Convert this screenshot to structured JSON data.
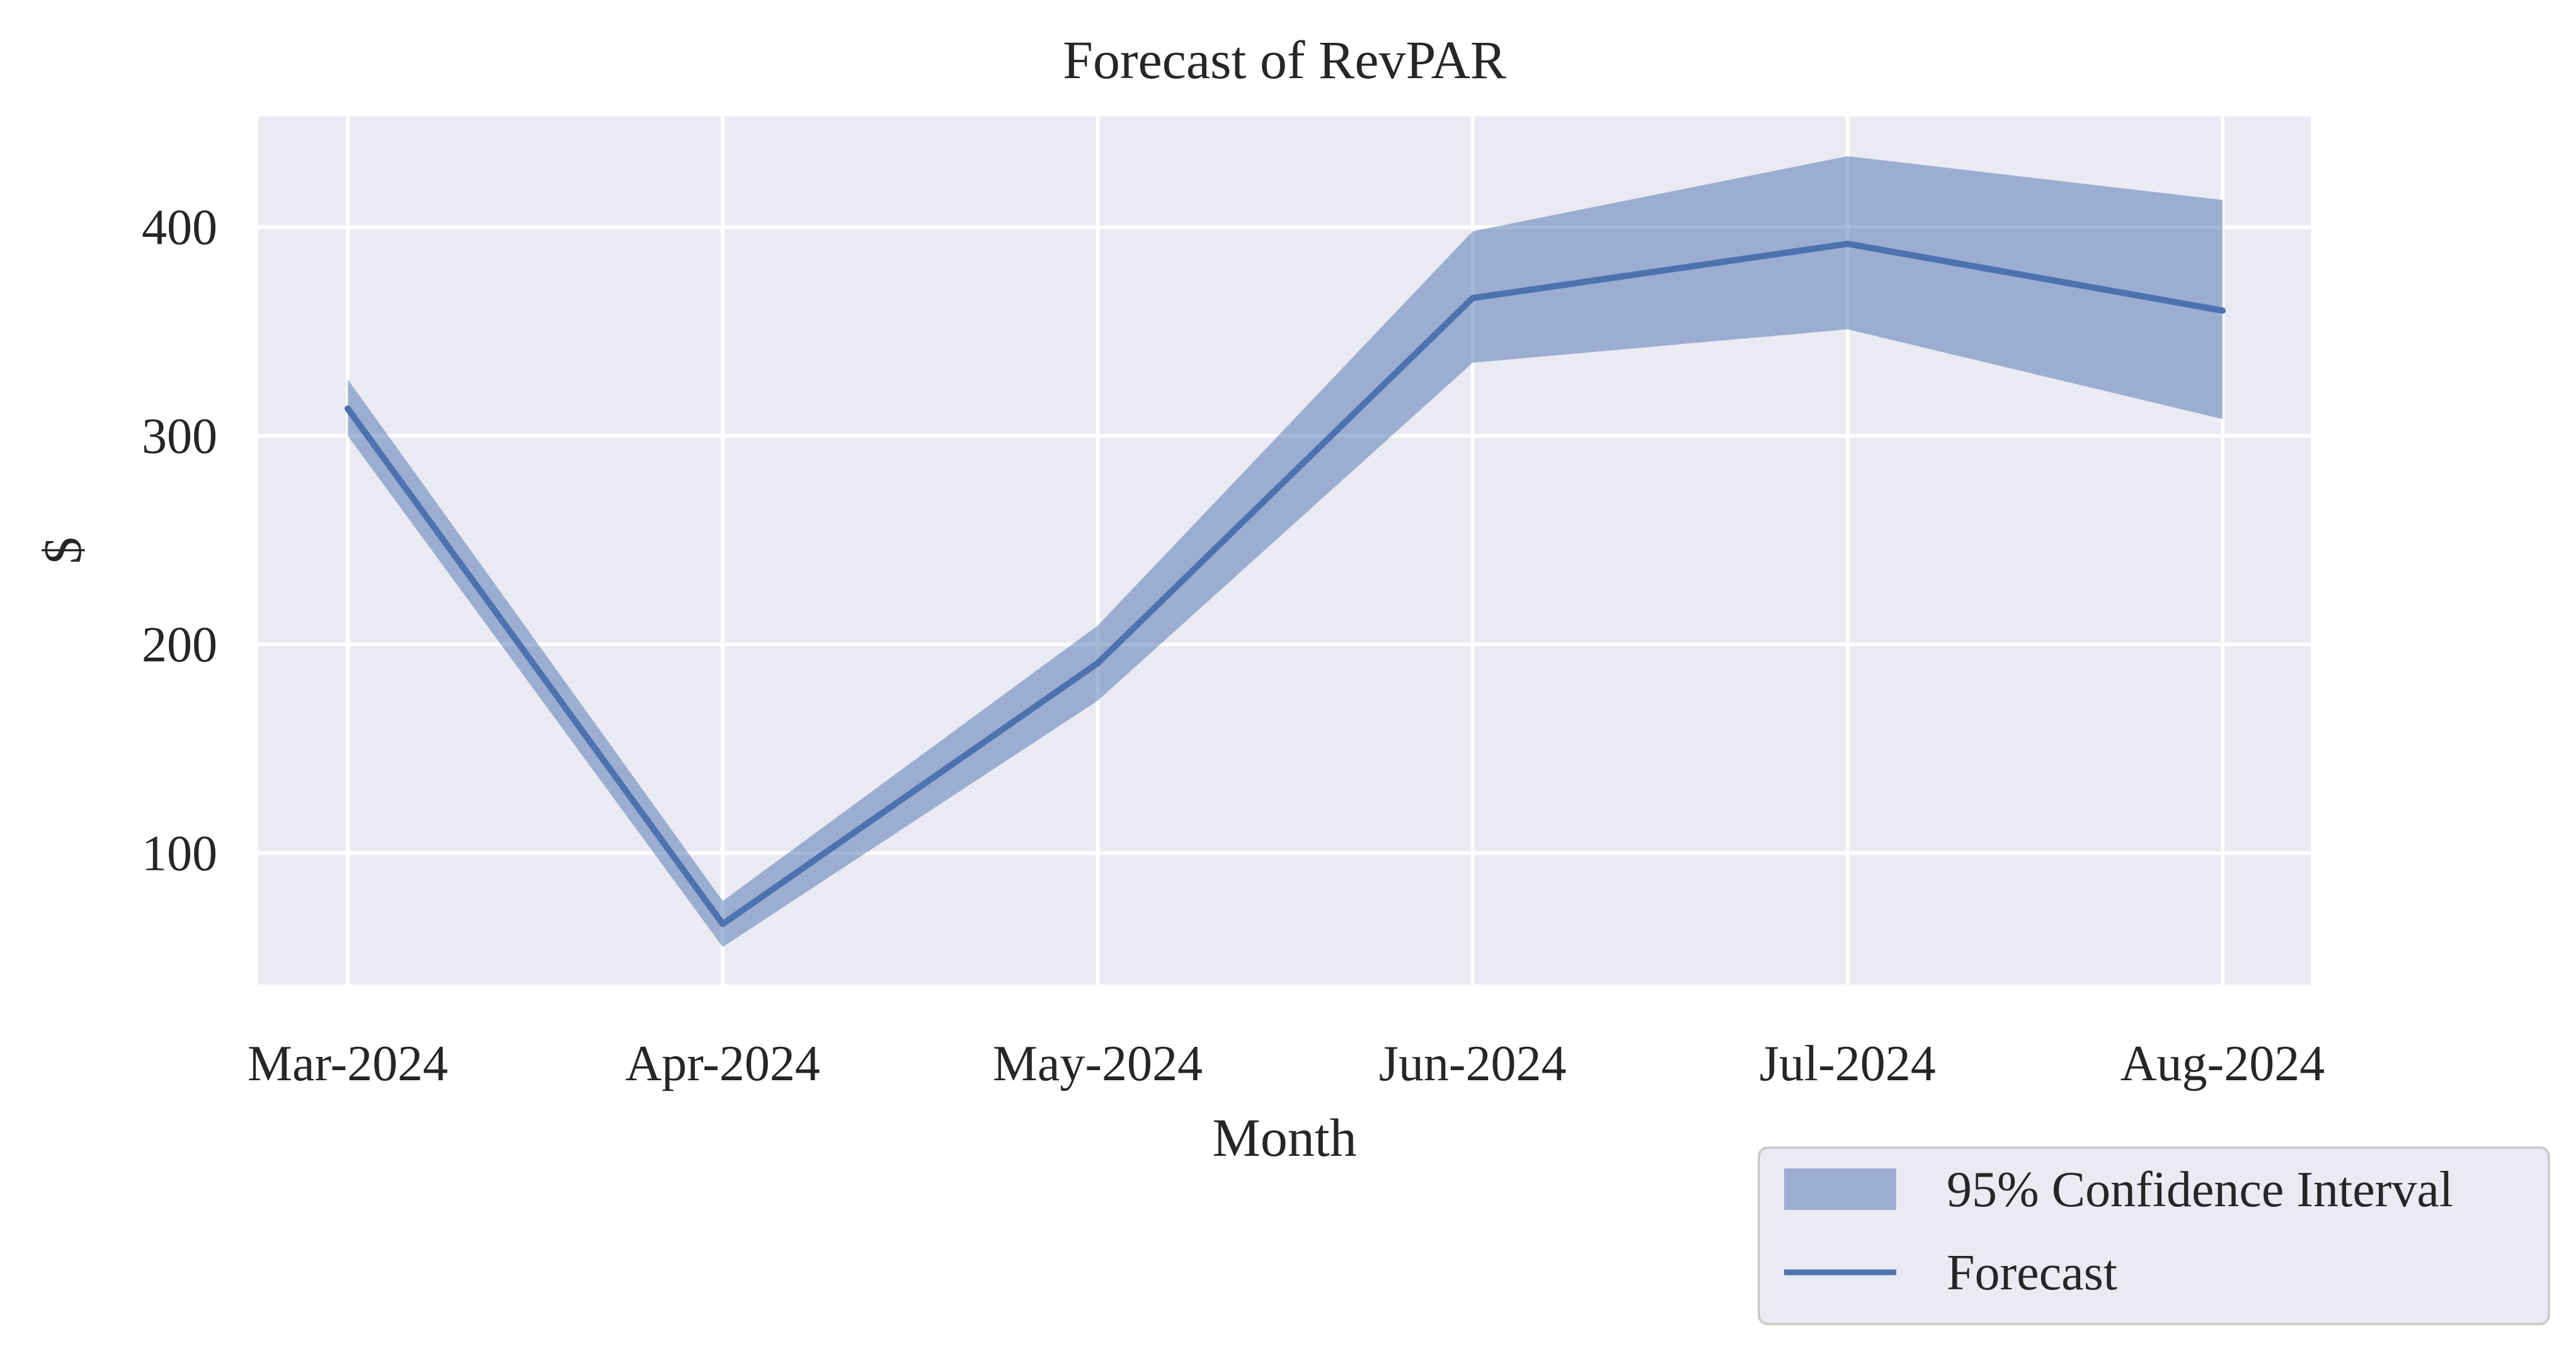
{
  "chart_data": {
    "type": "line",
    "title": "Forecast of RevPAR",
    "xlabel": "Month",
    "ylabel": "$",
    "categories": [
      "Mar-2024",
      "Apr-2024",
      "May-2024",
      "Jun-2024",
      "Jul-2024",
      "Aug-2024"
    ],
    "series": [
      {
        "name": "Forecast",
        "values": [
          313,
          66,
          191,
          366,
          392,
          360
        ]
      }
    ],
    "confidence_interval": {
      "name": "95% Confidence Interval",
      "lower": [
        300,
        55,
        173,
        335,
        351,
        308
      ],
      "upper": [
        327,
        77,
        209,
        398,
        434,
        413
      ]
    },
    "ylim": [
      37,
      453
    ],
    "yticks": [
      100,
      200,
      300,
      400
    ],
    "grid": true,
    "legend_position": "bottom-right, outside axes",
    "colors": {
      "line": "#4c72b0",
      "band": "#4c72b0",
      "plot_background": "#eaeaf2",
      "grid": "#ffffff",
      "text": "#262626"
    }
  }
}
